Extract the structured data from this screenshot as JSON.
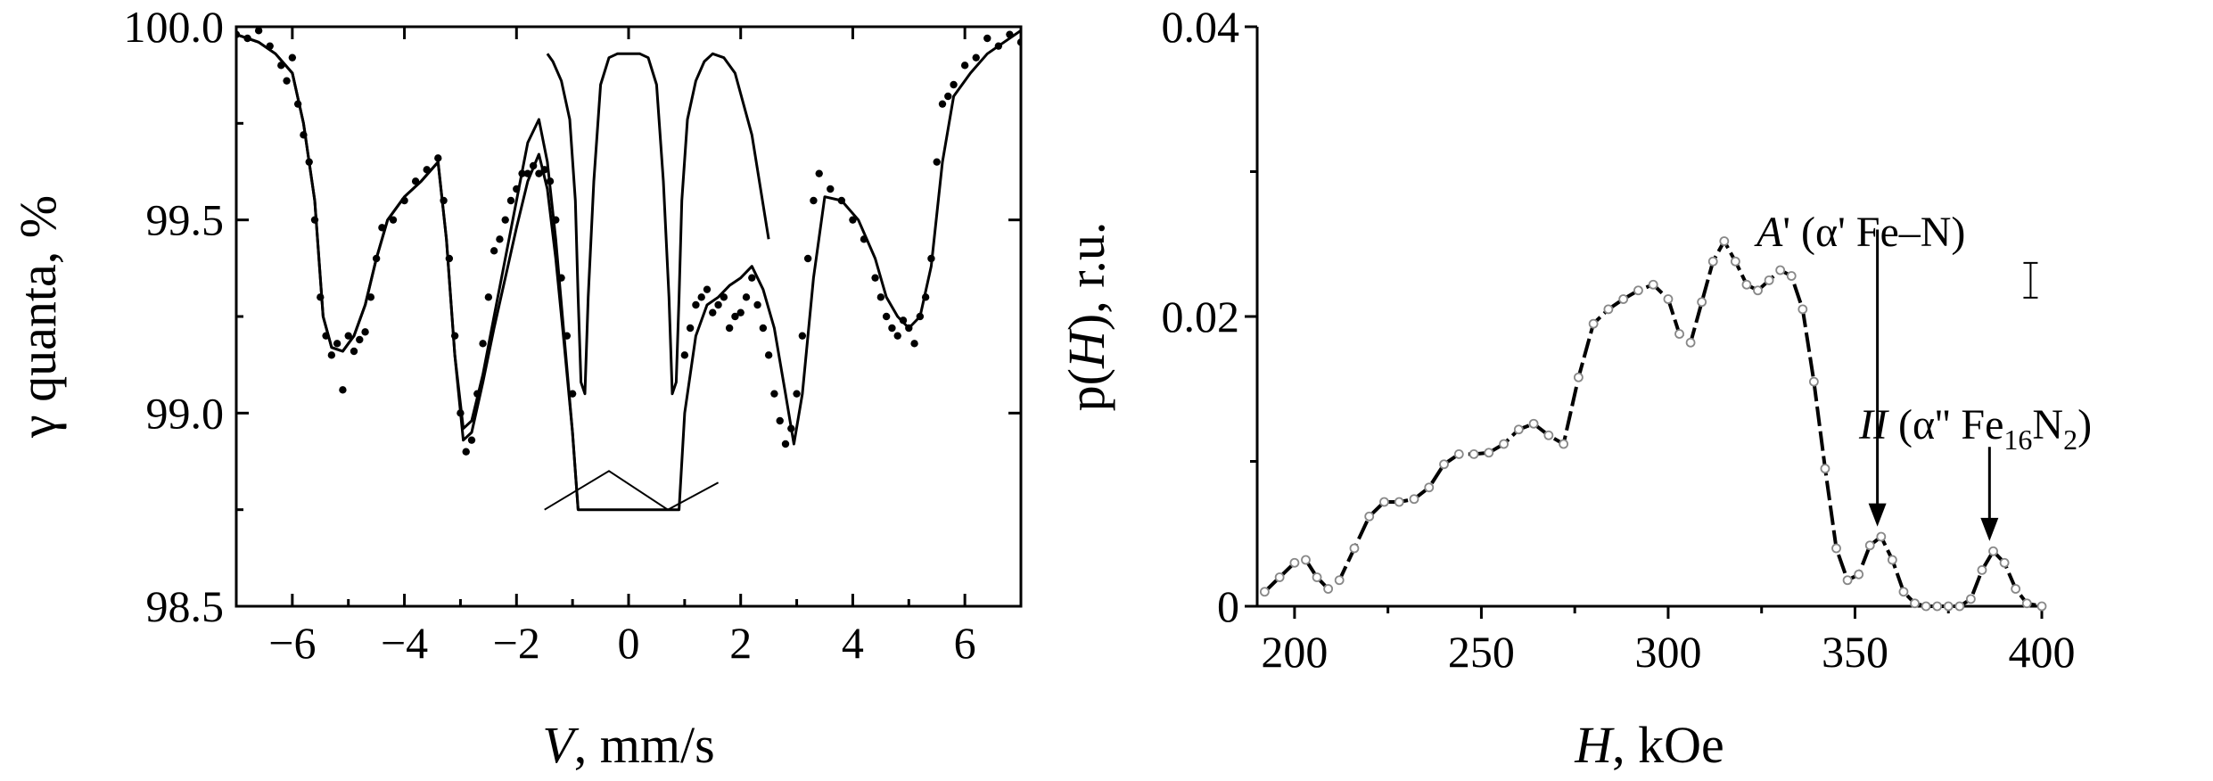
{
  "chart_data": [
    {
      "type": "scatter",
      "xlabel_var": "V",
      "xlabel_unit": ", mm/s",
      "ylabel": "γ quanta, %",
      "xlim": [
        -7,
        7
      ],
      "ylim": [
        98.5,
        100.0
      ],
      "xticks": [
        -6,
        -4,
        -2,
        0,
        2,
        4,
        6
      ],
      "xtick_labels": [
        "−6",
        "−4",
        "−2",
        "0",
        "2",
        "4",
        "6"
      ],
      "yticks": [
        98.5,
        99.0,
        99.5,
        100.0
      ],
      "ytick_labels": [
        "98.5",
        "99.0",
        "99.5",
        "100.0"
      ],
      "grid": false,
      "series": [
        {
          "kind": "points",
          "x": [
            -7,
            -6.8,
            -6.6,
            -6.4,
            -6.2,
            -6.1,
            -6.0,
            -5.9,
            -5.8,
            -5.7,
            -5.6,
            -5.5,
            -5.4,
            -5.3,
            -5.2,
            -5.1,
            -5.0,
            -4.9,
            -4.8,
            -4.7,
            -4.6,
            -4.5,
            -4.4,
            -4.2,
            -4.0,
            -3.8,
            -3.6,
            -3.4,
            -3.3,
            -3.2,
            -3.1,
            -3.0,
            -2.9,
            -2.8,
            -2.7,
            -2.6,
            -2.5,
            -2.4,
            -2.3,
            -2.2,
            -2.1,
            -2.0,
            -1.9,
            -1.8,
            -1.7,
            -1.6,
            -1.5,
            -1.4,
            -1.3,
            -1.2,
            -1.1,
            -1.0,
            1.0,
            1.1,
            1.2,
            1.3,
            1.4,
            1.5,
            1.6,
            1.7,
            1.8,
            1.9,
            2.0,
            2.1,
            2.2,
            2.3,
            2.4,
            2.5,
            2.6,
            2.7,
            2.8,
            2.9,
            3.0,
            3.1,
            3.2,
            3.3,
            3.4,
            3.6,
            3.8,
            4.0,
            4.2,
            4.4,
            4.5,
            4.6,
            4.7,
            4.8,
            4.9,
            5.0,
            5.1,
            5.2,
            5.3,
            5.4,
            5.5,
            5.6,
            5.7,
            5.8,
            6.0,
            6.2,
            6.4,
            6.6,
            6.8,
            7.0
          ],
          "y": [
            99.98,
            99.97,
            99.99,
            99.95,
            99.9,
            99.86,
            99.92,
            99.8,
            99.72,
            99.65,
            99.5,
            99.3,
            99.2,
            99.15,
            99.18,
            99.06,
            99.2,
            99.16,
            99.19,
            99.21,
            99.3,
            99.4,
            99.48,
            99.5,
            99.55,
            99.6,
            99.63,
            99.66,
            99.55,
            99.4,
            99.2,
            99.0,
            98.9,
            98.93,
            99.05,
            99.18,
            99.3,
            99.42,
            99.45,
            99.5,
            99.55,
            99.58,
            99.62,
            99.62,
            99.64,
            99.62,
            99.63,
            99.6,
            99.5,
            99.35,
            99.2,
            99.05,
            99.15,
            99.22,
            99.28,
            99.3,
            99.32,
            99.26,
            99.28,
            99.3,
            99.22,
            99.25,
            99.26,
            99.3,
            99.35,
            99.28,
            99.22,
            99.15,
            99.05,
            98.98,
            98.92,
            98.96,
            99.05,
            99.2,
            99.4,
            99.55,
            99.62,
            99.58,
            99.55,
            99.5,
            99.45,
            99.35,
            99.3,
            99.25,
            99.22,
            99.2,
            99.24,
            99.22,
            99.18,
            99.25,
            99.3,
            99.4,
            99.65,
            99.8,
            99.82,
            99.85,
            99.9,
            99.92,
            99.97,
            99.95,
            99.98,
            99.96
          ]
        },
        {
          "kind": "envelope",
          "x": [
            -7,
            -6.6,
            -6.3,
            -6.0,
            -5.8,
            -5.6,
            -5.45,
            -5.3,
            -5.1,
            -4.9,
            -4.7,
            -4.5,
            -4.3,
            -4.0,
            -3.7,
            -3.4,
            -3.25,
            -3.1,
            -2.95,
            -2.8,
            -2.6,
            -2.4,
            -2.2,
            -2.0,
            -1.8,
            -1.6,
            -1.45,
            -1.3,
            -1.15,
            -1.0,
            -0.9,
            0.9,
            1.0,
            1.2,
            1.4,
            1.6,
            1.8,
            2.0,
            2.2,
            2.4,
            2.6,
            2.8,
            2.95,
            3.1,
            3.3,
            3.5,
            3.8,
            4.1,
            4.4,
            4.6,
            4.8,
            5.0,
            5.2,
            5.4,
            5.6,
            5.8,
            6.1,
            6.4,
            6.7,
            7.0
          ],
          "y": [
            99.98,
            99.96,
            99.93,
            99.88,
            99.75,
            99.55,
            99.25,
            99.17,
            99.16,
            99.2,
            99.28,
            99.4,
            99.5,
            99.56,
            99.6,
            99.65,
            99.45,
            99.15,
            98.96,
            98.98,
            99.1,
            99.25,
            99.4,
            99.55,
            99.7,
            99.76,
            99.65,
            99.45,
            99.2,
            98.95,
            98.75,
            98.75,
            99.0,
            99.2,
            99.28,
            99.3,
            99.33,
            99.35,
            99.38,
            99.32,
            99.22,
            99.05,
            98.92,
            99.05,
            99.35,
            99.56,
            99.55,
            99.5,
            99.4,
            99.3,
            99.25,
            99.22,
            99.25,
            99.38,
            99.65,
            99.82,
            99.88,
            99.93,
            99.96,
            99.99
          ]
        },
        {
          "kind": "component",
          "x": [
            -7,
            -6.6,
            -6.3,
            -6.0,
            -5.8,
            -5.6,
            -5.45,
            -5.3,
            -5.1,
            -4.9,
            -4.7,
            -4.5,
            -4.3,
            -4.0,
            -3.7,
            -3.4,
            -3.25,
            -3.1,
            -2.95,
            -2.8,
            -2.6,
            -2.4,
            -2.2,
            -2.0,
            -1.8,
            -1.6,
            -1.45,
            -1.3,
            -1.15,
            -1.0,
            -0.9
          ],
          "y": [
            99.98,
            99.96,
            99.93,
            99.88,
            99.75,
            99.55,
            99.25,
            99.17,
            99.16,
            99.2,
            99.28,
            99.4,
            99.5,
            99.56,
            99.6,
            99.65,
            99.45,
            99.15,
            98.93,
            98.95,
            99.08,
            99.22,
            99.35,
            99.48,
            99.6,
            99.67,
            99.58,
            99.4,
            99.18,
            98.95,
            98.75
          ]
        },
        {
          "kind": "quadrupole-doublet",
          "x": [
            -1.45,
            -1.35,
            -1.2,
            -1.05,
            -0.95,
            -0.9,
            -0.85,
            -0.78,
            -0.72,
            -0.62,
            -0.5,
            -0.35,
            -0.2,
            0,
            0.2,
            0.35,
            0.5,
            0.62,
            0.72,
            0.78,
            0.85,
            0.9,
            0.95,
            1.05,
            1.2,
            1.35,
            1.5,
            1.7,
            1.9,
            2.2,
            2.5
          ],
          "y": [
            99.93,
            99.91,
            99.86,
            99.76,
            99.55,
            99.3,
            99.08,
            99.05,
            99.3,
            99.6,
            99.85,
            99.92,
            99.93,
            99.93,
            99.93,
            99.92,
            99.85,
            99.6,
            99.3,
            99.05,
            99.08,
            99.3,
            99.55,
            99.76,
            99.86,
            99.91,
            99.93,
            99.92,
            99.88,
            99.72,
            99.45
          ]
        }
      ],
      "baseline_marker": {
        "x": [
          -1.5,
          -0.35,
          0.7,
          1.6
        ],
        "y": [
          98.75,
          98.85,
          98.75,
          98.82
        ]
      }
    },
    {
      "type": "line",
      "xlabel_var": "H",
      "xlabel_unit": ", kOe",
      "ylabel_prefix": "p(",
      "ylabel_var": "H",
      "ylabel_suffix": "), r.u.",
      "xlim": [
        190,
        400
      ],
      "ylim": [
        0,
        0.04
      ],
      "xticks": [
        200,
        250,
        300,
        350,
        400
      ],
      "xtick_labels": [
        "200",
        "250",
        "300",
        "350",
        "400"
      ],
      "yticks": [
        0,
        0.02,
        0.04
      ],
      "ytick_labels": [
        "0",
        "0.02",
        "0.04"
      ],
      "grid": false,
      "series": [
        {
          "x": [
            192,
            196,
            200,
            203,
            206,
            209,
            212,
            216,
            220,
            224,
            228,
            232,
            236,
            240,
            244,
            248,
            252,
            256,
            260,
            264,
            268,
            272,
            276,
            280,
            284,
            288,
            292,
            296,
            300,
            303,
            306,
            309,
            312,
            315,
            318,
            321,
            324,
            327,
            330,
            333,
            336,
            339,
            342,
            345,
            348,
            351,
            354,
            357,
            360,
            363,
            366,
            369,
            372,
            375,
            378,
            381,
            384,
            387,
            390,
            393,
            396,
            400
          ],
          "y": [
            0.001,
            0.002,
            0.003,
            0.0032,
            0.002,
            0.0012,
            0.0018,
            0.004,
            0.0062,
            0.0072,
            0.0072,
            0.0074,
            0.0082,
            0.0098,
            0.0105,
            0.0105,
            0.0106,
            0.0112,
            0.0122,
            0.0126,
            0.0118,
            0.0112,
            0.0158,
            0.0195,
            0.0205,
            0.0212,
            0.0218,
            0.0222,
            0.0212,
            0.0188,
            0.0182,
            0.021,
            0.0238,
            0.0252,
            0.0238,
            0.0222,
            0.0218,
            0.0225,
            0.0232,
            0.0228,
            0.0205,
            0.0155,
            0.0095,
            0.004,
            0.0018,
            0.0022,
            0.0042,
            0.0048,
            0.0032,
            0.001,
            0.0002,
            0.0,
            0.0,
            0.0,
            0.0,
            0.0005,
            0.0025,
            0.0038,
            0.003,
            0.0012,
            0.0002,
            0.0
          ]
        }
      ],
      "annotations": [
        {
          "label_var": "A",
          "label_rest": "' (α' Fe–N)",
          "arrow_x": 356,
          "arrow_y_from": 0.026,
          "arrow_y_to": 0.0055
        },
        {
          "label_var": "II",
          "label_rest": " (α'' Fe",
          "sub1": "16",
          "mid": "N",
          "sub2": "2",
          "end": ")",
          "arrow_x": 386,
          "arrow_y_from": 0.011,
          "arrow_y_to": 0.0045
        }
      ],
      "error_bar": {
        "x": 397,
        "y": 0.0225,
        "half": 0.0012
      }
    }
  ]
}
